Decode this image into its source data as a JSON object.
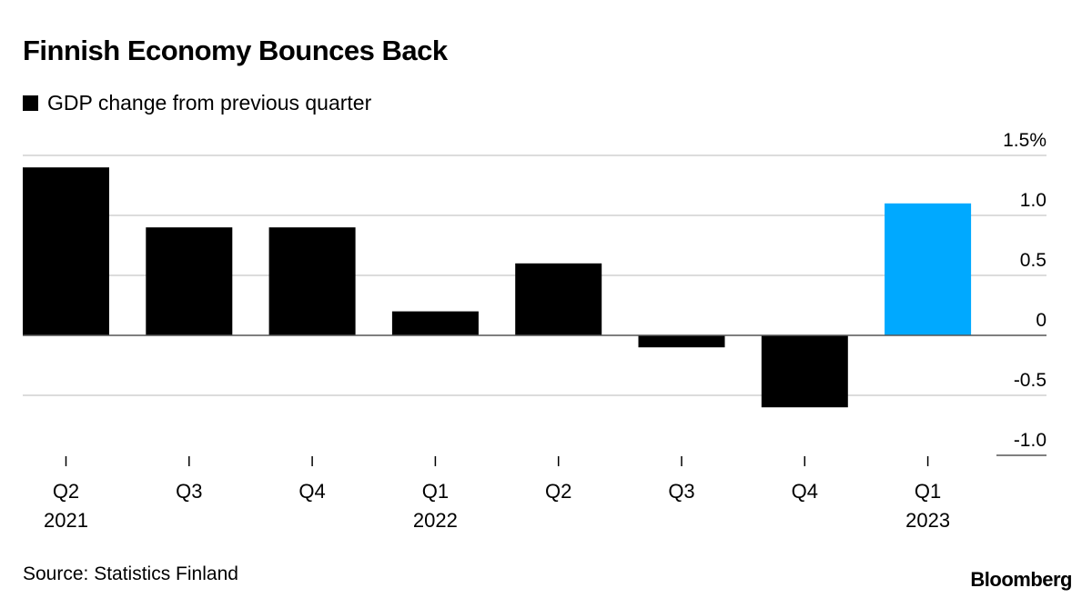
{
  "chart_data": {
    "type": "bar",
    "title": "Finnish Economy Bounces Back",
    "legend": [
      {
        "name": "GDP change from previous quarter",
        "color": "#000000"
      }
    ],
    "categories": [
      "Q2\n2021",
      "Q3",
      "Q4",
      "Q1\n2022",
      "Q2",
      "Q3",
      "Q4",
      "Q1\n2023"
    ],
    "category_lines": [
      [
        "Q2",
        "2021"
      ],
      [
        "Q3",
        ""
      ],
      [
        "Q4",
        ""
      ],
      [
        "Q1",
        "2022"
      ],
      [
        "Q2",
        ""
      ],
      [
        "Q3",
        ""
      ],
      [
        "Q4",
        ""
      ],
      [
        "Q1",
        "2023"
      ]
    ],
    "values": [
      1.4,
      0.9,
      0.9,
      0.2,
      0.6,
      -0.1,
      -0.6,
      1.1
    ],
    "colors": [
      "#000000",
      "#000000",
      "#000000",
      "#000000",
      "#000000",
      "#000000",
      "#000000",
      "#00a9ff"
    ],
    "ylim": [
      -1.0,
      1.5
    ],
    "yticks": [
      1.5,
      1.0,
      0.5,
      0,
      -0.5,
      -1.0
    ],
    "ytick_labels": [
      "1.5%",
      "1.0",
      "0.5",
      "0",
      "-0.5",
      "-1.0"
    ],
    "xlabel": "",
    "ylabel": "",
    "grid": true,
    "legend_position": "top-left"
  },
  "footer": {
    "source": "Source: Statistics Finland",
    "brand": "Bloomberg"
  }
}
